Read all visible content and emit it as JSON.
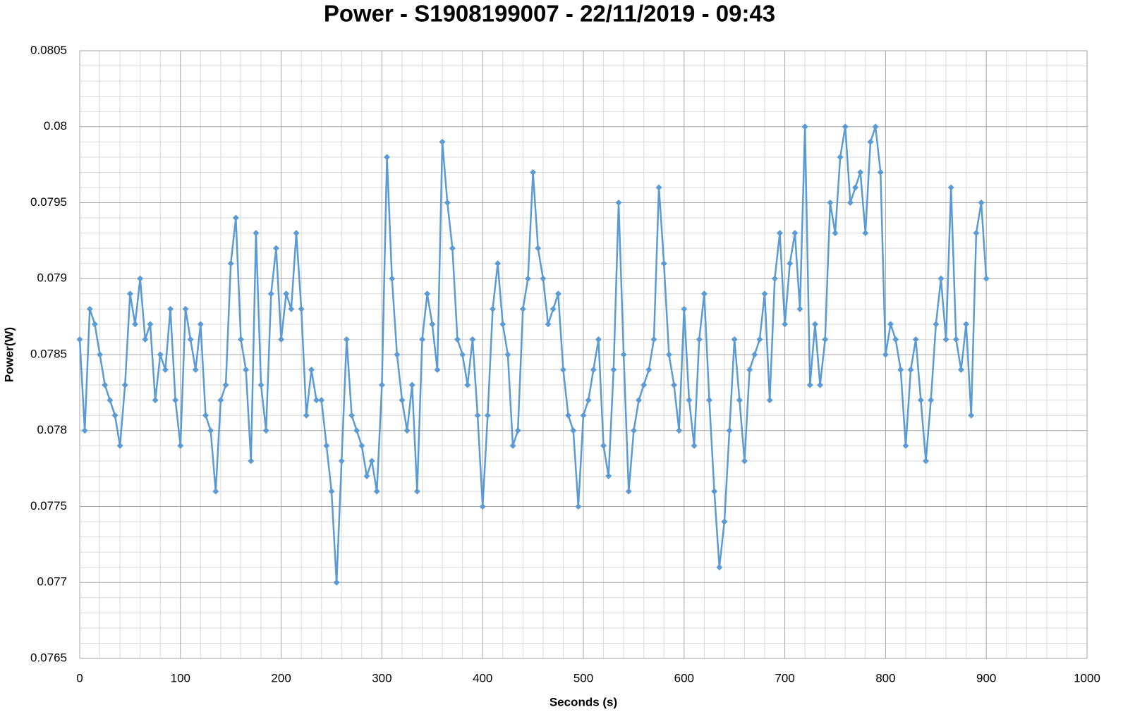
{
  "chart_data": {
    "type": "line",
    "title": "Power - S1908199007 - 22/11/2019 - 09:43",
    "x_label": "Seconds (s)",
    "y_label": "Power(W)",
    "xlim": [
      0,
      1000
    ],
    "xticks": [
      0,
      100,
      200,
      300,
      400,
      500,
      600,
      700,
      800,
      900,
      1000
    ],
    "ylim": [
      0.0765,
      0.0805
    ],
    "yticks": [
      0.0765,
      0.077,
      0.0775,
      0.078,
      0.0785,
      0.079,
      0.0795,
      0.08,
      0.0805
    ],
    "grid": true,
    "minor_grid": true,
    "marker": "diamond",
    "series": [
      {
        "color": "#5b9bd5",
        "x": [
          0,
          5,
          10,
          15,
          20,
          25,
          30,
          35,
          40,
          45,
          50,
          55,
          60,
          65,
          70,
          75,
          80,
          85,
          90,
          95,
          100,
          105,
          110,
          115,
          120,
          125,
          130,
          135,
          140,
          145,
          150,
          155,
          160,
          165,
          170,
          175,
          180,
          185,
          190,
          195,
          200,
          205,
          210,
          215,
          220,
          225,
          230,
          235,
          240,
          245,
          250,
          255,
          260,
          265,
          270,
          275,
          280,
          285,
          290,
          295,
          300,
          305,
          310,
          315,
          320,
          325,
          330,
          335,
          340,
          345,
          350,
          355,
          360,
          365,
          370,
          375,
          380,
          385,
          390,
          395,
          400,
          405,
          410,
          415,
          420,
          425,
          430,
          435,
          440,
          445,
          450,
          455,
          460,
          465,
          470,
          475,
          480,
          485,
          490,
          495,
          500,
          505,
          510,
          515,
          520,
          525,
          530,
          535,
          540,
          545,
          550,
          555,
          560,
          565,
          570,
          575,
          580,
          585,
          590,
          595,
          600,
          605,
          610,
          615,
          620,
          625,
          630,
          635,
          640,
          645,
          650,
          655,
          660,
          665,
          670,
          675,
          680,
          685,
          690,
          695,
          700,
          705,
          710,
          715,
          720,
          725,
          730,
          735,
          740,
          745,
          750,
          755,
          760,
          765,
          770,
          775,
          780,
          785,
          790,
          795,
          800,
          805,
          810,
          815,
          820,
          825,
          830,
          835,
          840,
          845,
          850,
          855,
          860,
          865,
          870,
          875,
          880,
          885,
          890,
          895,
          900
        ],
        "values": [
          0.0786,
          0.078,
          0.0788,
          0.0787,
          0.0785,
          0.0783,
          0.0782,
          0.0781,
          0.0779,
          0.0783,
          0.0789,
          0.0787,
          0.079,
          0.0786,
          0.0787,
          0.0782,
          0.0785,
          0.0784,
          0.0788,
          0.0782,
          0.0779,
          0.0788,
          0.0786,
          0.0784,
          0.0787,
          0.0781,
          0.078,
          0.0776,
          0.0782,
          0.0783,
          0.0791,
          0.0794,
          0.0786,
          0.0784,
          0.0778,
          0.0793,
          0.0783,
          0.078,
          0.0789,
          0.0792,
          0.0786,
          0.0789,
          0.0788,
          0.0793,
          0.0788,
          0.0781,
          0.0784,
          0.0782,
          0.0782,
          0.0779,
          0.0776,
          0.077,
          0.0778,
          0.0786,
          0.0781,
          0.078,
          0.0779,
          0.0777,
          0.0778,
          0.0776,
          0.0783,
          0.0798,
          0.079,
          0.0785,
          0.0782,
          0.078,
          0.0783,
          0.0776,
          0.0786,
          0.0789,
          0.0787,
          0.0784,
          0.0799,
          0.0795,
          0.0792,
          0.0786,
          0.0785,
          0.0783,
          0.0786,
          0.0781,
          0.0775,
          0.0781,
          0.0788,
          0.0791,
          0.0787,
          0.0785,
          0.0779,
          0.078,
          0.0788,
          0.079,
          0.0797,
          0.0792,
          0.079,
          0.0787,
          0.0788,
          0.0789,
          0.0784,
          0.0781,
          0.078,
          0.0775,
          0.0781,
          0.0782,
          0.0784,
          0.0786,
          0.0779,
          0.0777,
          0.0784,
          0.0795,
          0.0785,
          0.0776,
          0.078,
          0.0782,
          0.0783,
          0.0784,
          0.0786,
          0.0796,
          0.0791,
          0.0785,
          0.0783,
          0.078,
          0.0788,
          0.0782,
          0.0779,
          0.0786,
          0.0789,
          0.0782,
          0.0776,
          0.0771,
          0.0774,
          0.078,
          0.0786,
          0.0782,
          0.0778,
          0.0784,
          0.0785,
          0.0786,
          0.0789,
          0.0782,
          0.079,
          0.0793,
          0.0787,
          0.0791,
          0.0793,
          0.0788,
          0.08,
          0.0783,
          0.0787,
          0.0783,
          0.0786,
          0.0795,
          0.0793,
          0.0798,
          0.08,
          0.0795,
          0.0796,
          0.0797,
          0.0793,
          0.0799,
          0.08,
          0.0797,
          0.0785,
          0.0787,
          0.0786,
          0.0784,
          0.0779,
          0.0784,
          0.0786,
          0.0782,
          0.0778,
          0.0782,
          0.0787,
          0.079,
          0.0786,
          0.0796,
          0.0786,
          0.0784,
          0.0787,
          0.0781,
          0.0793,
          0.0795,
          0.079
        ]
      }
    ]
  }
}
